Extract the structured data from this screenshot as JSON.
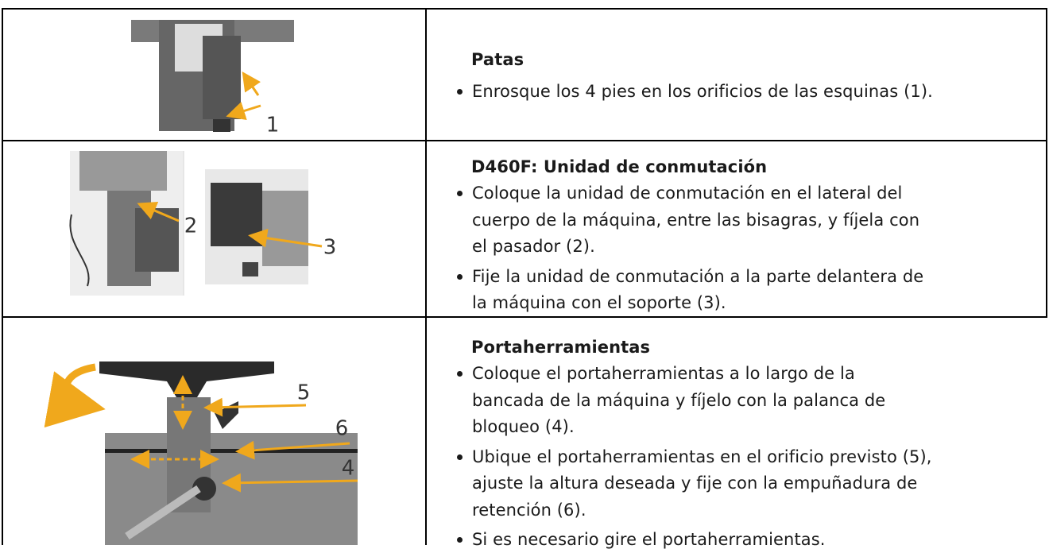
{
  "table": {
    "rows": [
      {
        "labels": [
          "1"
        ],
        "heading": "Patas",
        "bullets": [
          [
            "Enrosque los 4 pies en los orificios de las esquinas (1)."
          ]
        ]
      },
      {
        "labels": [
          "2",
          "3"
        ],
        "heading": "D460F: Unidad de conmutación",
        "bullets": [
          [
            "Coloque la unidad de conmutación en el lateral del",
            "cuerpo de la máquina, entre las bisagras, y fíjela con",
            "el pasador (2)."
          ],
          [
            "Fije la unidad de conmutación a la parte delantera de",
            "la máquina con el soporte (3)."
          ]
        ]
      },
      {
        "labels": [
          "5",
          "6",
          "4"
        ],
        "heading": "Portaherramientas",
        "bullets": [
          [
            "Coloque el portaherramientas a lo largo de la",
            "bancada de la máquina y fíjelo con la palanca de",
            "bloqueo (4)."
          ],
          [
            "Ubique el portaherramientas en el orificio previsto (5),",
            "ajuste la altura deseada y fije con la empuñadura de",
            "retención (6)."
          ],
          [
            "Si es necesario gire el portaherramientas."
          ]
        ]
      }
    ]
  }
}
